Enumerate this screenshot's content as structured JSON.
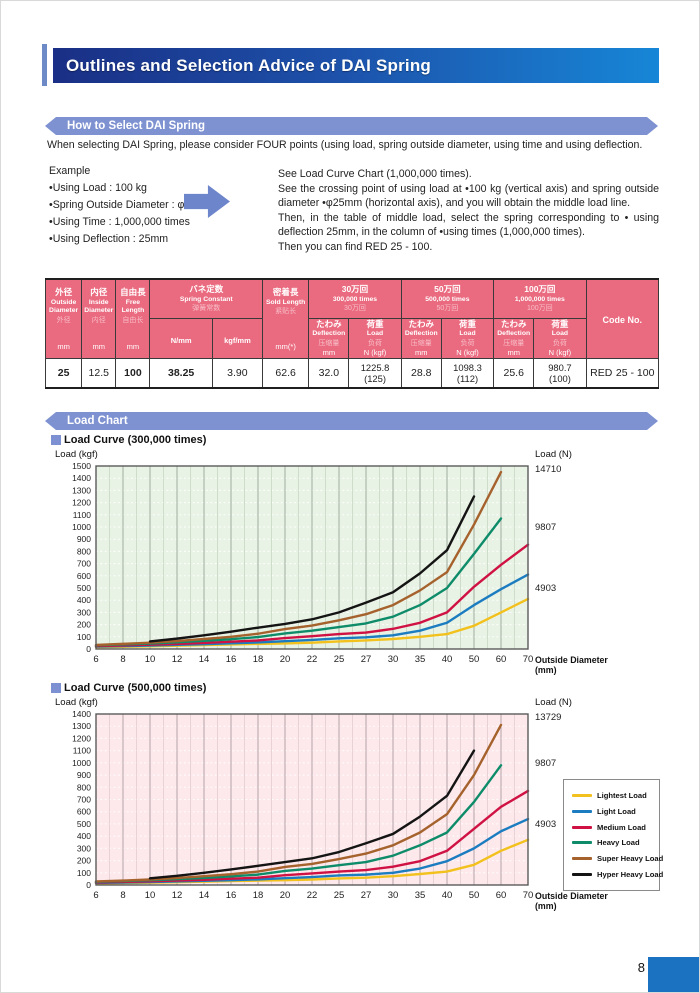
{
  "page": {
    "number": "8"
  },
  "header": {
    "title": "Outlines and Selection Advice of DAI Spring"
  },
  "sections": {
    "how_to_select": {
      "banner": "How to Select DAI Spring"
    },
    "load_chart": {
      "banner": "Load Chart"
    }
  },
  "intro": "When selecting DAI Spring, please consider FOUR points (using load, spring outside diameter, using time and using deflection.",
  "example": {
    "title": "Example",
    "items": [
      "•Using Load : 100 kg",
      "•Spring Outside Diameter : φ25mm",
      "•Using Time : 1,000,000 times",
      "•Using Deflection : 25mm"
    ]
  },
  "instructions": {
    "p1": "See Load Curve Chart (1,000,000 times).",
    "p2": "See the crossing point of using load at •100 kg (vertical axis) and spring outside diameter •φ25mm (horizontal axis), and you will obtain the middle load line.",
    "p3": "Then, in the table of middle load, select the spring corresponding to • using deflection 25mm, in the column of •using times (1,000,000 times).",
    "p4": "Then you can find RED 25 - 100."
  },
  "spec_table": {
    "col_outside": {
      "jp": "外径",
      "en": "Outside Diameter",
      "cn": "外径",
      "unit": "mm"
    },
    "col_inside": {
      "jp": "内径",
      "en": "Inside Diameter",
      "cn": "内径",
      "unit": "mm"
    },
    "col_free": {
      "jp": "自由長",
      "en": "Free Length",
      "cn": "自由长",
      "unit": "mm"
    },
    "col_spring_constant": {
      "jp": "バネ定数",
      "en": "Spring Constant",
      "cn": "弹簧常数",
      "sub1": "N/mm",
      "sub2": "kgf/mm"
    },
    "col_solid": {
      "jp": "密着長",
      "en": "Sold Length",
      "cn": "紧贴长",
      "unit": "mm(*)"
    },
    "groups": [
      {
        "jp": "30万回",
        "en": "300,000 times",
        "cn": "30万回"
      },
      {
        "jp": "50万回",
        "en": "500,000 times",
        "cn": "50万回"
      },
      {
        "jp": "100万回",
        "en": "1,000,000 times",
        "cn": "100万回"
      }
    ],
    "sub_deflection": {
      "jp": "たわみ",
      "en": "Deflection",
      "cn": "压缩量",
      "unit": "mm"
    },
    "sub_load": {
      "jp": "荷重",
      "en": "Load",
      "cn": "负荷",
      "unit": "N (kgf)"
    },
    "col_code": {
      "label": "Code No."
    },
    "row": {
      "outside": "25",
      "inside": "12.5",
      "free": "100",
      "n_mm": "38.25",
      "kgf_mm": "3.90",
      "solid": "62.6",
      "d1": "32.0",
      "l1a": "1225.8",
      "l1b": "(125)",
      "d2": "28.8",
      "l2a": "1098.3",
      "l2b": "(112)",
      "d3": "25.6",
      "l3a": "980.7",
      "l3b": "(100)",
      "code_color": "RED",
      "code_size": "25 - 100"
    }
  },
  "chart_data": [
    {
      "type": "line",
      "title": "Load Curve (300,000 times)",
      "ylabel_left": "Load (kgf)",
      "ylabel_right": "Load (N)",
      "xlabel": "Outside Diameter",
      "xlabel_unit": "(mm)",
      "categories": [
        "6",
        "8",
        "10",
        "12",
        "14",
        "16",
        "18",
        "20",
        "22",
        "25",
        "27",
        "30",
        "35",
        "40",
        "50",
        "60",
        "70"
      ],
      "ylim": [
        0,
        1500
      ],
      "ytick_step": 100,
      "right_axis": [
        {
          "value": 1500,
          "label": "14710"
        },
        {
          "value": 1000,
          "label": "9807"
        },
        {
          "value": 500,
          "label": "4903"
        }
      ],
      "grid": {
        "bg": "#e9f3e5",
        "major": "#9fae9d",
        "minor": "#c6d7c3",
        "hdash": "#ffffff"
      },
      "series": [
        {
          "name": "Lightest Load",
          "color": "#f2c11d",
          "values": [
            15,
            18,
            22,
            27,
            32,
            38,
            42,
            46,
            52,
            62,
            70,
            82,
            100,
            122,
            190,
            300,
            410
          ]
        },
        {
          "name": "Light Load",
          "color": "#1c7cc0",
          "values": [
            20,
            24,
            28,
            34,
            40,
            47,
            54,
            64,
            74,
            88,
            96,
            112,
            150,
            215,
            360,
            490,
            610
          ]
        },
        {
          "name": "Medium Load",
          "color": "#cf1243",
          "values": [
            24,
            29,
            35,
            42,
            50,
            60,
            70,
            90,
            105,
            122,
            135,
            165,
            215,
            300,
            510,
            690,
            855
          ]
        },
        {
          "name": "Heavy Load",
          "color": "#0e8c6a",
          "values": [
            30,
            37,
            45,
            55,
            67,
            80,
            98,
            128,
            150,
            180,
            210,
            265,
            360,
            500,
            780,
            1070,
            null
          ]
        },
        {
          "name": "Super Heavy Load",
          "color": "#a5622d",
          "values": [
            33,
            42,
            52,
            65,
            82,
            100,
            125,
            163,
            192,
            235,
            285,
            360,
            480,
            630,
            1020,
            1450,
            null
          ]
        },
        {
          "name": "Hyper Heavy Load",
          "color": "#141414",
          "values": [
            null,
            null,
            62,
            85,
            112,
            142,
            175,
            205,
            243,
            300,
            380,
            465,
            620,
            810,
            1250,
            null,
            null
          ]
        }
      ]
    },
    {
      "type": "line",
      "title": "Load Curve (500,000 times)",
      "ylabel_left": "Load (kgf)",
      "ylabel_right": "Load (N)",
      "xlabel": "Outside Diameter",
      "xlabel_unit": "(mm)",
      "categories": [
        "6",
        "8",
        "10",
        "12",
        "14",
        "16",
        "18",
        "20",
        "22",
        "25",
        "27",
        "30",
        "35",
        "40",
        "50",
        "60",
        "70"
      ],
      "ylim": [
        0,
        1400
      ],
      "ytick_step": 100,
      "right_axis": [
        {
          "value": 1400,
          "label": "13729"
        },
        {
          "value": 1000,
          "label": "9807"
        },
        {
          "value": 500,
          "label": "4903"
        }
      ],
      "grid": {
        "bg": "#fde9ec",
        "major": "#b3a4a8",
        "minor": "#e3ccd0",
        "hdash": "#ffffff"
      },
      "series": [
        {
          "name": "Lightest Load",
          "color": "#f2c11d",
          "values": [
            13,
            16,
            19,
            23,
            27,
            32,
            36,
            40,
            45,
            54,
            60,
            72,
            90,
            110,
            165,
            280,
            370
          ]
        },
        {
          "name": "Light Load",
          "color": "#1c7cc0",
          "values": [
            17,
            20,
            24,
            29,
            34,
            40,
            46,
            56,
            65,
            78,
            85,
            100,
            135,
            195,
            300,
            440,
            540
          ]
        },
        {
          "name": "Medium Load",
          "color": "#cf1243",
          "values": [
            21,
            25,
            30,
            36,
            43,
            52,
            60,
            80,
            95,
            110,
            122,
            150,
            195,
            280,
            460,
            640,
            770
          ]
        },
        {
          "name": "Heavy Load",
          "color": "#0e8c6a",
          "values": [
            26,
            32,
            39,
            48,
            58,
            70,
            85,
            115,
            135,
            162,
            188,
            240,
            325,
            430,
            680,
            980,
            null
          ]
        },
        {
          "name": "Super Heavy Load",
          "color": "#a5622d",
          "values": [
            29,
            36,
            45,
            57,
            72,
            88,
            110,
            148,
            172,
            212,
            257,
            325,
            430,
            580,
            900,
            1310,
            null
          ]
        },
        {
          "name": "Hyper Heavy Load",
          "color": "#141414",
          "values": [
            null,
            null,
            55,
            75,
            100,
            127,
            157,
            188,
            218,
            270,
            342,
            418,
            560,
            730,
            1100,
            null,
            null
          ]
        }
      ]
    }
  ]
}
